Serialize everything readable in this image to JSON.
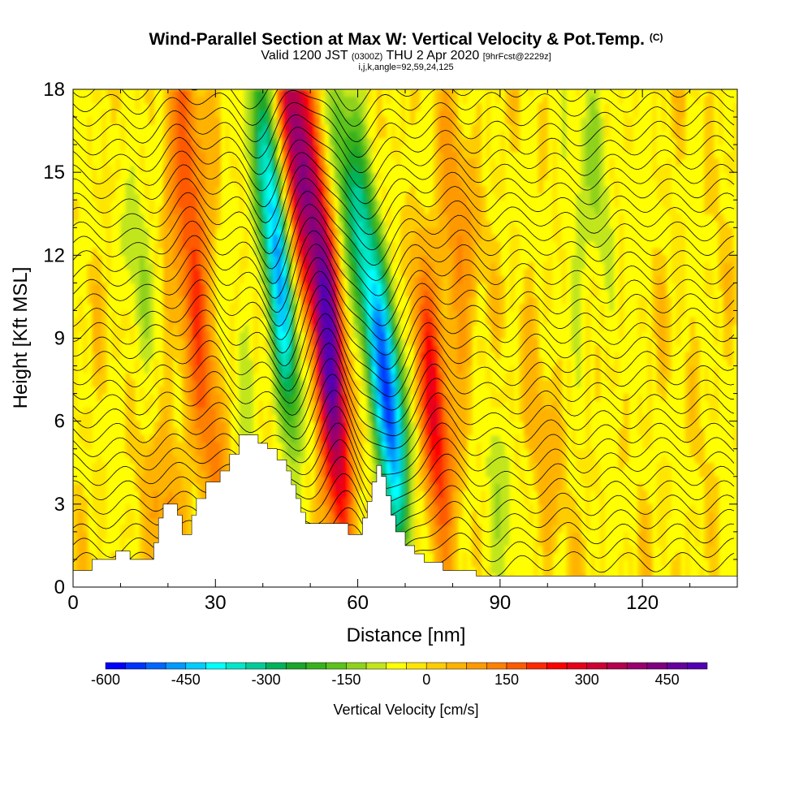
{
  "header": {
    "title_main": "Wind-Parallel Section at Max W: Vertical Velocity & Pot.Temp.",
    "title_mark": "(C)",
    "sub_valid": "Valid 1200 JST",
    "sub_utc": "(0300Z)",
    "sub_date": "THU 2 Apr 2020",
    "sub_fcst": "[9hrFcst@2229z]",
    "ijk": "i,j,k,angle=92,59,24,125"
  },
  "chart_data": {
    "type": "heatmap",
    "title": "Wind-Parallel Section at Max W: Vertical Velocity & Pot.Temp.",
    "xlabel": "Distance [nm]",
    "ylabel": "Height [Kft MSL]",
    "xlim": [
      0,
      140
    ],
    "ylim": [
      0,
      18
    ],
    "x_ticks": [
      "0",
      "30",
      "60",
      "90",
      "120"
    ],
    "y_ticks": [
      "0",
      "3",
      "6",
      "9",
      "12",
      "15",
      "18"
    ],
    "x_tick_values": [
      0,
      30,
      60,
      90,
      120
    ],
    "y_tick_values": [
      0,
      3,
      6,
      9,
      12,
      15,
      18
    ],
    "terrain": [
      [
        0,
        0.6
      ],
      [
        4,
        0.6
      ],
      [
        4,
        1.0
      ],
      [
        9,
        1.0
      ],
      [
        9,
        1.3
      ],
      [
        12,
        1.3
      ],
      [
        12,
        1.0
      ],
      [
        17,
        1.0
      ],
      [
        17,
        1.6
      ],
      [
        18,
        1.6
      ],
      [
        18,
        2.5
      ],
      [
        19,
        2.5
      ],
      [
        19,
        3.0
      ],
      [
        22,
        3.0
      ],
      [
        22,
        2.6
      ],
      [
        23,
        2.6
      ],
      [
        23,
        1.9
      ],
      [
        25,
        1.9
      ],
      [
        25,
        2.6
      ],
      [
        26,
        2.6
      ],
      [
        26,
        3.2
      ],
      [
        28,
        3.2
      ],
      [
        28,
        3.8
      ],
      [
        31,
        3.8
      ],
      [
        31,
        4.2
      ],
      [
        33,
        4.2
      ],
      [
        33,
        4.8
      ],
      [
        35,
        4.8
      ],
      [
        35,
        5.5
      ],
      [
        39,
        5.5
      ],
      [
        39,
        5.2
      ],
      [
        41,
        5.2
      ],
      [
        41,
        5.0
      ],
      [
        43,
        5.0
      ],
      [
        43,
        4.6
      ],
      [
        45,
        4.6
      ],
      [
        45,
        4.2
      ],
      [
        46,
        4.2
      ],
      [
        46,
        3.7
      ],
      [
        47,
        3.7
      ],
      [
        47,
        3.2
      ],
      [
        48,
        3.2
      ],
      [
        48,
        2.7
      ],
      [
        49,
        2.7
      ],
      [
        49,
        2.3
      ],
      [
        58,
        2.3
      ],
      [
        58,
        1.9
      ],
      [
        61,
        1.9
      ],
      [
        61,
        2.5
      ],
      [
        62,
        2.5
      ],
      [
        62,
        3.1
      ],
      [
        63,
        3.1
      ],
      [
        63,
        3.8
      ],
      [
        64,
        3.8
      ],
      [
        64,
        4.4
      ],
      [
        65,
        4.4
      ],
      [
        65,
        4.0
      ],
      [
        66,
        4.0
      ],
      [
        66,
        3.3
      ],
      [
        67,
        3.3
      ],
      [
        67,
        2.6
      ],
      [
        68,
        2.6
      ],
      [
        68,
        2.0
      ],
      [
        70,
        2.0
      ],
      [
        70,
        1.5
      ],
      [
        72,
        1.5
      ],
      [
        72,
        1.2
      ],
      [
        74,
        1.2
      ],
      [
        74,
        0.9
      ],
      [
        78,
        0.9
      ],
      [
        78,
        0.6
      ],
      [
        85,
        0.6
      ],
      [
        85,
        0.4
      ],
      [
        140,
        0.4
      ]
    ],
    "updrafts": [
      [
        47,
        17.5,
        300
      ],
      [
        53,
        11,
        330
      ],
      [
        55,
        6,
        320
      ],
      [
        76,
        6,
        260
      ],
      [
        46,
        14,
        220
      ],
      [
        23,
        16,
        130
      ],
      [
        26,
        11,
        120
      ],
      [
        81,
        12,
        110
      ],
      [
        30,
        5,
        90
      ],
      [
        20,
        3,
        90
      ],
      [
        100,
        7,
        60
      ]
    ],
    "downdrafts": [
      [
        43,
        13,
        -250
      ],
      [
        45,
        9,
        -260
      ],
      [
        67,
        6,
        -500
      ],
      [
        62,
        11,
        -210
      ],
      [
        58,
        15,
        -180
      ],
      [
        40,
        16,
        -150
      ],
      [
        14,
        12,
        -110
      ],
      [
        90,
        2.4,
        -100
      ],
      [
        105,
        11,
        -80
      ],
      [
        110,
        16,
        -110
      ],
      [
        35,
        7,
        -80
      ]
    ],
    "colorbar": {
      "label": "Vertical Velocity [cm/s]",
      "tick_labels": [
        "-600",
        "-450",
        "-300",
        "-150",
        "0",
        "150",
        "300",
        "450"
      ],
      "tick_values": [
        -600,
        -450,
        -300,
        -150,
        0,
        150,
        300,
        450
      ],
      "range": [
        -600,
        525
      ],
      "step": 37.5,
      "colors": [
        "#0000ff",
        "#0033ff",
        "#0066ff",
        "#0099ff",
        "#00ccff",
        "#00ffff",
        "#00e6c8",
        "#00cc99",
        "#00b359",
        "#1aa62a",
        "#38b21c",
        "#5cc21c",
        "#8ed21c",
        "#c2e61c",
        "#ffff00",
        "#ffe600",
        "#ffcc00",
        "#ffb300",
        "#ff9900",
        "#ff7f00",
        "#ff5a00",
        "#ff2a00",
        "#ff0000",
        "#e6001a",
        "#cc0033",
        "#b3004d",
        "#99006e",
        "#800080",
        "#66009e",
        "#5300b3"
      ]
    }
  }
}
